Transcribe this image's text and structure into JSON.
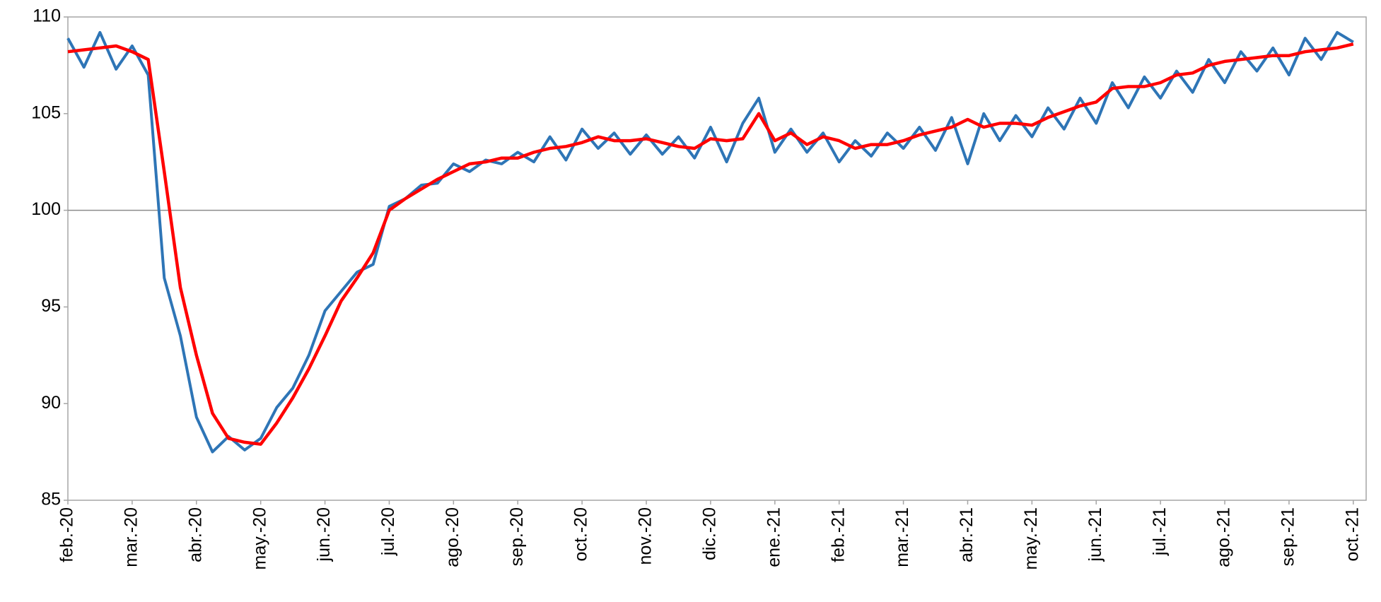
{
  "chart_data": {
    "type": "line",
    "categories": [
      "feb.-20",
      null,
      null,
      null,
      "mar.-20",
      null,
      null,
      null,
      "abr.-20",
      null,
      null,
      null,
      "may.-20",
      null,
      null,
      null,
      "jun.-20",
      null,
      null,
      null,
      "jul.-20",
      null,
      null,
      null,
      "ago.-20",
      null,
      null,
      null,
      "sep.-20",
      null,
      null,
      null,
      "oct.-20",
      null,
      null,
      null,
      "nov.-20",
      null,
      null,
      null,
      "dic.-20",
      null,
      null,
      null,
      "ene.-21",
      null,
      null,
      null,
      "feb.-21",
      null,
      null,
      null,
      "mar.-21",
      null,
      null,
      null,
      "abr.-21",
      null,
      null,
      null,
      "may.-21",
      null,
      null,
      null,
      "jun.-21",
      null,
      null,
      null,
      "jul.-21",
      null,
      null,
      null,
      "ago.-21",
      null,
      null,
      null,
      "sep.-21",
      null,
      null,
      null,
      "oct.-21"
    ],
    "series": [
      {
        "color": "#2e75b6",
        "values": [
          108.9,
          107.4,
          109.2,
          107.3,
          108.5,
          107.0,
          96.5,
          93.5,
          89.3,
          87.5,
          88.3,
          87.6,
          88.2,
          89.8,
          90.8,
          92.5,
          94.8,
          95.8,
          96.8,
          97.2,
          100.2,
          100.6,
          101.3,
          101.4,
          102.4,
          102.0,
          102.6,
          102.4,
          103.0,
          102.5,
          103.8,
          102.6,
          104.2,
          103.2,
          104.0,
          102.9,
          103.9,
          102.9,
          103.8,
          102.7,
          104.3,
          102.5,
          104.5,
          105.8,
          103.0,
          104.2,
          103.0,
          104.0,
          102.5,
          103.6,
          102.8,
          104.0,
          103.2,
          104.3,
          103.1,
          104.8,
          102.4,
          105.0,
          103.6,
          104.9,
          103.8,
          105.3,
          104.2,
          105.8,
          104.5,
          106.6,
          105.3,
          106.9,
          105.8,
          107.2,
          106.1,
          107.8,
          106.6,
          108.2,
          107.2,
          108.4,
          107.0,
          108.9,
          107.8,
          109.2,
          108.7
        ]
      },
      {
        "color": "#ff0000",
        "values": [
          108.2,
          108.3,
          108.4,
          108.5,
          108.2,
          107.8,
          102.0,
          96.0,
          92.5,
          89.5,
          88.2,
          88.0,
          87.9,
          89.0,
          90.3,
          91.8,
          93.5,
          95.3,
          96.5,
          97.8,
          100.0,
          100.6,
          101.1,
          101.6,
          102.0,
          102.4,
          102.5,
          102.7,
          102.7,
          103.0,
          103.2,
          103.3,
          103.5,
          103.8,
          103.6,
          103.6,
          103.7,
          103.5,
          103.3,
          103.2,
          103.7,
          103.6,
          103.7,
          105.0,
          103.6,
          104.0,
          103.4,
          103.8,
          103.6,
          103.2,
          103.4,
          103.4,
          103.6,
          103.9,
          104.1,
          104.3,
          104.7,
          104.3,
          104.5,
          104.5,
          104.4,
          104.8,
          105.1,
          105.4,
          105.6,
          106.3,
          106.4,
          106.4,
          106.6,
          107.0,
          107.1,
          107.5,
          107.7,
          107.8,
          107.9,
          108.0,
          108.0,
          108.2,
          108.3,
          108.4,
          108.6
        ]
      }
    ],
    "ylim": [
      85,
      110
    ],
    "yticks": [
      85,
      90,
      95,
      100,
      105,
      110
    ],
    "hline": 100
  }
}
